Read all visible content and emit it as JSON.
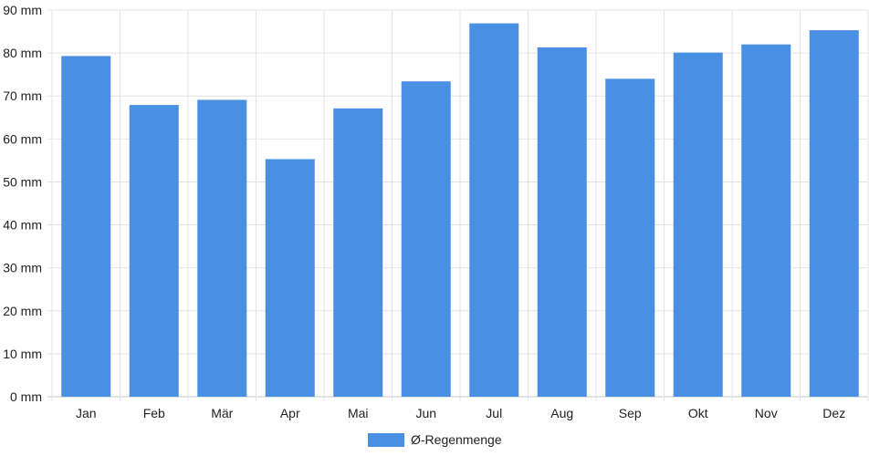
{
  "chart_data": {
    "type": "bar",
    "categories": [
      "Jan",
      "Feb",
      "Mär",
      "Apr",
      "Mai",
      "Jun",
      "Jul",
      "Aug",
      "Sep",
      "Okt",
      "Nov",
      "Dez"
    ],
    "series": [
      {
        "name": "Ø-Regenmenge",
        "values": [
          79.3,
          67.9,
          69.1,
          55.3,
          67.1,
          73.4,
          86.9,
          81.3,
          74.0,
          80.1,
          82.0,
          85.3
        ],
        "color": "#4a90e2"
      }
    ],
    "y_ticks": [
      "0 mm",
      "10 mm",
      "20 mm",
      "30 mm",
      "40 mm",
      "50 mm",
      "60 mm",
      "70 mm",
      "80 mm",
      "90 mm"
    ],
    "ylim": [
      0,
      90
    ],
    "unit": "mm",
    "grid": true,
    "legend_position": "bottom-center",
    "title": "",
    "xlabel": "",
    "ylabel": ""
  }
}
